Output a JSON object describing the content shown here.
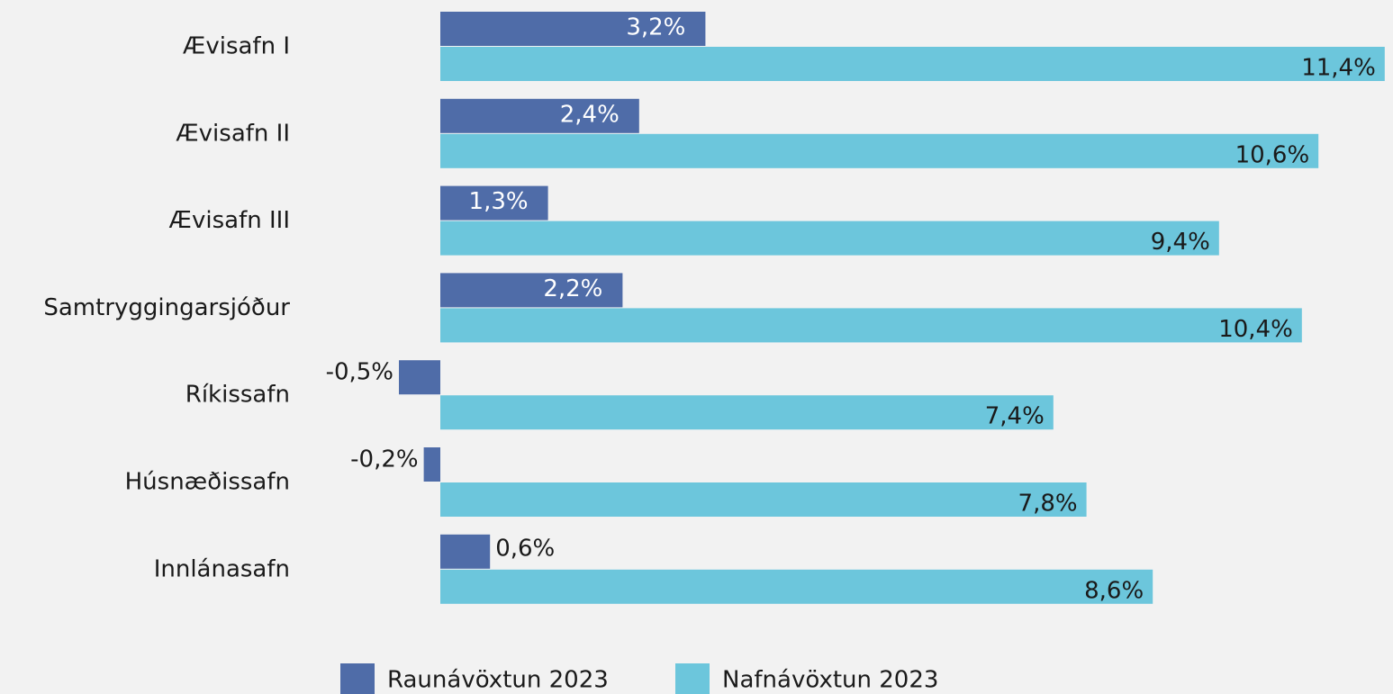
{
  "chart_data": {
    "type": "bar",
    "orientation": "horizontal",
    "categories": [
      "Ævisafn I",
      "Ævisafn II",
      "Ævisafn III",
      "Samtryggingarsjóður",
      "Ríkissafn",
      "Húsnæðissafn",
      "Innlánasafn"
    ],
    "series": [
      {
        "name": "Raunávöxtun 2023",
        "color": "#4f6ca8",
        "values": [
          3.2,
          2.4,
          1.3,
          2.2,
          -0.5,
          -0.2,
          0.6
        ],
        "value_labels": [
          "3,2%",
          "2,4%",
          "1,3%",
          "2,2%",
          "-0,5%",
          "-0,2%",
          "0,6%"
        ]
      },
      {
        "name": "Nafnávöxtun 2023",
        "color": "#6cc6dc",
        "values": [
          11.4,
          10.6,
          9.4,
          10.4,
          7.4,
          7.8,
          8.6
        ],
        "value_labels": [
          "11,4%",
          "10,6%",
          "9,4%",
          "10,4%",
          "7,4%",
          "7,8%",
          "8,6%"
        ]
      }
    ],
    "legend": "bottom"
  }
}
